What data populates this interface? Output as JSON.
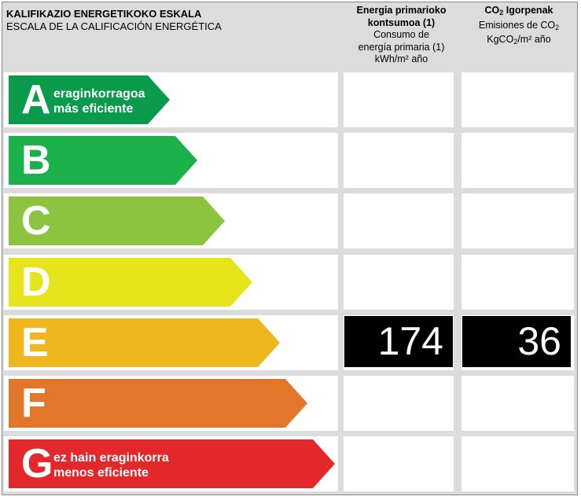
{
  "header": {
    "title_eu": "KALIFIKAZIO ENERGETIKOKO ESKALA",
    "title_es": "ESCALA DE LA CALIFICACIÓN ENERGÉTICA",
    "col1": {
      "line1": "Energia primarioko",
      "line2": "kontsumoa (1)",
      "line3": "Consumo de",
      "line4": "energía primaria (1)",
      "line5": "kWh/m² año"
    },
    "col2": {
      "line1_a": "CO",
      "line1_sub": "2",
      "line1_b": " Igorpenak",
      "line2_a": "Emisiones de CO",
      "line2_sub": "2",
      "line3_a": "KgCO",
      "line3_sub": "2",
      "line3_b": "/m² año"
    }
  },
  "ratings": [
    {
      "letter": "A",
      "desc1": "eraginkorragoa",
      "desc2": "más eficiente",
      "color": "#0a9a4c"
    },
    {
      "letter": "B",
      "desc1": "",
      "desc2": "",
      "color": "#1ab14b"
    },
    {
      "letter": "C",
      "desc1": "",
      "desc2": "",
      "color": "#8cc43f"
    },
    {
      "letter": "D",
      "desc1": "",
      "desc2": "",
      "color": "#e6e51c"
    },
    {
      "letter": "E",
      "desc1": "",
      "desc2": "",
      "color": "#f0b61e"
    },
    {
      "letter": "F",
      "desc1": "",
      "desc2": "",
      "color": "#e2762a"
    },
    {
      "letter": "G",
      "desc1": "ez hain eraginkorra",
      "desc2": "menos eficiente",
      "color": "#e3282b"
    }
  ],
  "values": {
    "rating_letter": "E",
    "primary_energy": "174",
    "co2_emissions": "36"
  }
}
